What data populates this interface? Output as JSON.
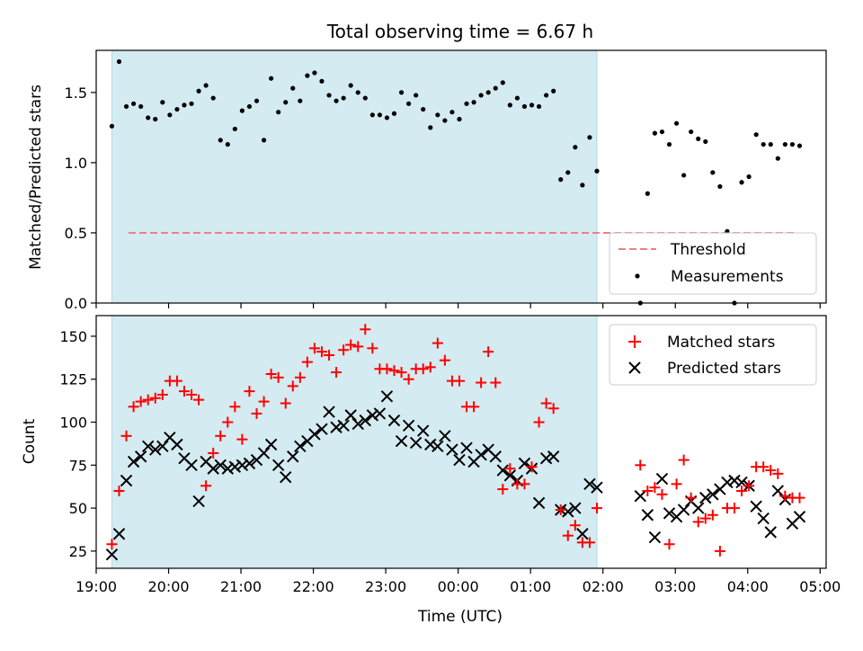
{
  "title": "Total observing time = 6.67 h",
  "chart_data": [
    {
      "type": "scatter",
      "ylabel": "Matched/Predicted stars",
      "xlabel": "",
      "ylim": [
        0,
        1.8
      ],
      "xlim": [
        "19:00",
        "05:05"
      ],
      "yticks": [
        "0.0",
        "0.5",
        "1.0",
        "1.5"
      ],
      "threshold": 0.5,
      "shaded_span": [
        "19:13",
        "01:55"
      ],
      "shaded_color": "#d4ebf1",
      "threshold_color": "#f08080",
      "legend": {
        "position": "bottom-right",
        "entries": [
          "Threshold",
          "Measurements"
        ]
      },
      "series": [
        {
          "name": "Measurements",
          "color": "#000000",
          "x": [
            "19:13",
            "19:19",
            "19:25",
            "19:31",
            "19:37",
            "19:43",
            "19:49",
            "19:55",
            "20:01",
            "20:07",
            "20:13",
            "20:19",
            "20:25",
            "20:31",
            "20:37",
            "20:43",
            "20:49",
            "20:55",
            "21:01",
            "21:07",
            "21:13",
            "21:19",
            "21:25",
            "21:31",
            "21:37",
            "21:43",
            "21:49",
            "21:55",
            "22:01",
            "22:07",
            "22:13",
            "22:19",
            "22:25",
            "22:31",
            "22:37",
            "22:43",
            "22:49",
            "22:55",
            "23:01",
            "23:07",
            "23:13",
            "23:19",
            "23:25",
            "23:31",
            "23:37",
            "23:43",
            "23:49",
            "23:55",
            "00:01",
            "00:07",
            "00:13",
            "00:19",
            "00:25",
            "00:31",
            "00:37",
            "00:43",
            "00:49",
            "00:55",
            "01:01",
            "01:07",
            "01:13",
            "01:19",
            "01:25",
            "01:31",
            "01:37",
            "01:43",
            "01:49",
            "01:55",
            "02:31",
            "02:37",
            "02:43",
            "02:49",
            "02:55",
            "03:01",
            "03:07",
            "03:13",
            "03:19",
            "03:25",
            "03:31",
            "03:37",
            "03:43",
            "03:49",
            "03:55",
            "04:01",
            "04:07",
            "04:13",
            "04:19",
            "04:25",
            "04:31",
            "04:37",
            "04:43"
          ],
          "y": [
            1.26,
            1.72,
            1.4,
            1.42,
            1.4,
            1.32,
            1.31,
            1.43,
            1.34,
            1.38,
            1.41,
            1.42,
            1.51,
            1.55,
            1.46,
            1.16,
            1.13,
            1.24,
            1.37,
            1.4,
            1.44,
            1.16,
            1.6,
            1.36,
            1.43,
            1.53,
            1.44,
            1.62,
            1.64,
            1.58,
            1.48,
            1.44,
            1.46,
            1.55,
            1.5,
            1.46,
            1.34,
            1.34,
            1.32,
            1.35,
            1.5,
            1.42,
            1.48,
            1.38,
            1.25,
            1.34,
            1.3,
            1.36,
            1.31,
            1.42,
            1.43,
            1.48,
            1.5,
            1.53,
            1.57,
            1.41,
            1.46,
            1.4,
            1.41,
            1.4,
            1.48,
            1.51,
            0.88,
            0.93,
            1.11,
            0.84,
            1.18,
            0.94,
            0.0,
            0.78,
            1.21,
            1.22,
            1.13,
            1.28,
            0.91,
            1.22,
            1.17,
            1.15,
            0.93,
            0.83,
            0.51,
            0.0,
            0.86,
            0.9,
            1.2,
            1.13,
            1.13,
            1.03,
            1.13,
            1.13,
            1.12
          ]
        }
      ]
    },
    {
      "type": "scatter",
      "ylabel": "Count",
      "xlabel": "Time (UTC)",
      "ylim": [
        15,
        162
      ],
      "xlim": [
        "19:00",
        "05:05"
      ],
      "yticks": [
        "25",
        "50",
        "75",
        "100",
        "125",
        "150"
      ],
      "xticks": [
        "19:00",
        "20:00",
        "21:00",
        "22:00",
        "23:00",
        "00:00",
        "01:00",
        "02:00",
        "03:00",
        "04:00",
        "05:00"
      ],
      "shaded_span": [
        "19:13",
        "01:55"
      ],
      "legend": {
        "position": "top-right",
        "entries": [
          "Matched stars",
          "Predicted stars"
        ]
      },
      "series": [
        {
          "name": "Matched stars",
          "marker": "+",
          "color": "#ff0000",
          "x": [
            "19:13",
            "19:19",
            "19:25",
            "19:31",
            "19:37",
            "19:43",
            "19:49",
            "19:55",
            "20:01",
            "20:07",
            "20:13",
            "20:19",
            "20:25",
            "20:31",
            "20:37",
            "20:43",
            "20:49",
            "20:55",
            "21:01",
            "21:07",
            "21:13",
            "21:19",
            "21:25",
            "21:31",
            "21:37",
            "21:43",
            "21:49",
            "21:55",
            "22:01",
            "22:07",
            "22:13",
            "22:19",
            "22:25",
            "22:31",
            "22:37",
            "22:43",
            "22:49",
            "22:55",
            "23:01",
            "23:07",
            "23:13",
            "23:19",
            "23:25",
            "23:31",
            "23:37",
            "23:43",
            "23:49",
            "23:55",
            "00:01",
            "00:07",
            "00:13",
            "00:19",
            "00:25",
            "00:31",
            "00:37",
            "00:43",
            "00:49",
            "00:55",
            "01:01",
            "01:07",
            "01:13",
            "01:19",
            "01:25",
            "01:31",
            "01:37",
            "01:43",
            "01:49",
            "01:55",
            "02:31",
            "02:37",
            "02:43",
            "02:49",
            "02:55",
            "03:01",
            "03:07",
            "03:13",
            "03:19",
            "03:25",
            "03:31",
            "03:37",
            "03:43",
            "03:49",
            "03:55",
            "04:01",
            "04:07",
            "04:13",
            "04:19",
            "04:25",
            "04:31",
            "04:37",
            "04:43"
          ],
          "y": [
            29,
            60,
            92,
            109,
            112,
            113,
            114,
            116,
            124,
            124,
            118,
            116,
            113,
            63,
            82,
            92,
            100,
            109,
            90,
            118,
            105,
            112,
            128,
            126,
            111,
            121,
            126,
            135,
            143,
            141,
            139,
            129,
            142,
            145,
            144,
            154,
            143,
            131,
            131,
            130,
            129,
            125,
            131,
            131,
            132,
            146,
            136,
            124,
            124,
            109,
            109,
            123,
            141,
            123,
            61,
            73,
            64,
            64,
            74,
            100,
            111,
            108,
            49,
            34,
            40,
            30,
            30,
            50,
            75,
            60,
            62,
            58,
            29,
            64,
            78,
            56,
            42,
            44,
            46,
            25,
            50,
            50,
            60,
            63,
            74,
            74,
            72,
            70,
            57,
            56,
            56
          ]
        },
        {
          "name": "Predicted stars",
          "marker": "x",
          "color": "#000000",
          "x": [
            "19:13",
            "19:19",
            "19:25",
            "19:31",
            "19:37",
            "19:43",
            "19:49",
            "19:55",
            "20:01",
            "20:07",
            "20:13",
            "20:19",
            "20:25",
            "20:31",
            "20:37",
            "20:43",
            "20:49",
            "20:55",
            "21:01",
            "21:07",
            "21:13",
            "21:19",
            "21:25",
            "21:31",
            "21:37",
            "21:43",
            "21:49",
            "21:55",
            "22:01",
            "22:07",
            "22:13",
            "22:19",
            "22:25",
            "22:31",
            "22:37",
            "22:43",
            "22:49",
            "22:55",
            "23:01",
            "23:07",
            "23:13",
            "23:19",
            "23:25",
            "23:31",
            "23:37",
            "23:43",
            "23:49",
            "23:55",
            "00:01",
            "00:07",
            "00:13",
            "00:19",
            "00:25",
            "00:31",
            "00:37",
            "00:43",
            "00:49",
            "00:55",
            "01:01",
            "01:07",
            "01:13",
            "01:19",
            "01:25",
            "01:31",
            "01:37",
            "01:43",
            "01:49",
            "01:55",
            "02:31",
            "02:37",
            "02:43",
            "02:49",
            "02:55",
            "03:01",
            "03:07",
            "03:13",
            "03:19",
            "03:25",
            "03:31",
            "03:37",
            "03:43",
            "03:49",
            "03:55",
            "04:01",
            "04:07",
            "04:13",
            "04:19",
            "04:25",
            "04:31",
            "04:37",
            "04:43"
          ],
          "y": [
            23,
            35,
            66,
            77,
            80,
            86,
            84,
            86,
            91,
            87,
            79,
            75,
            54,
            77,
            73,
            75,
            73,
            74,
            75,
            76,
            78,
            82,
            87,
            75,
            68,
            80,
            86,
            89,
            93,
            96,
            106,
            97,
            98,
            104,
            99,
            101,
            104,
            105,
            115,
            101,
            89,
            98,
            88,
            95,
            87,
            86,
            92,
            84,
            78,
            85,
            77,
            81,
            84,
            80,
            72,
            69,
            66,
            76,
            73,
            53,
            79,
            80,
            49,
            48,
            50,
            35,
            64,
            62,
            57,
            46,
            33,
            67,
            47,
            45,
            49,
            54,
            50,
            56,
            58,
            61,
            65,
            66,
            65,
            63,
            51,
            44,
            36,
            60,
            55,
            41,
            45
          ]
        }
      ]
    }
  ]
}
